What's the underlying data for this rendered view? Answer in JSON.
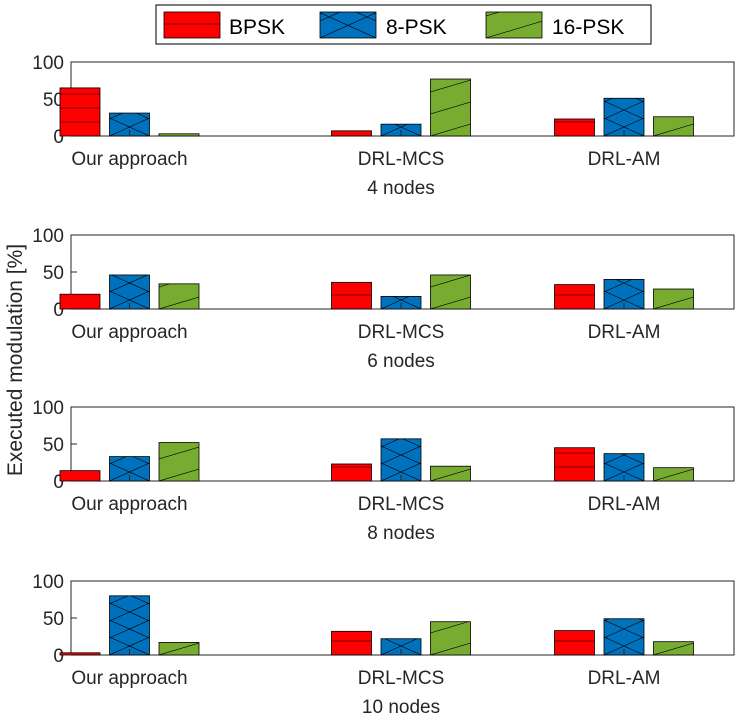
{
  "ylabel": "Executed modulation [%]",
  "legend": [
    {
      "name": "BPSK",
      "color": "#ff0000"
    },
    {
      "name": "8-PSK",
      "color": "#0072bd"
    },
    {
      "name": "16-PSK",
      "color": "#77ac30"
    }
  ],
  "chart_data": [
    {
      "type": "bar",
      "title": "4 nodes",
      "categories": [
        "Our approach",
        "DRL-MCS",
        "DRL-AM"
      ],
      "ylim": [
        0,
        100
      ],
      "yticks": [
        0,
        50,
        100
      ],
      "series": [
        {
          "name": "BPSK",
          "values": [
            65,
            7,
            23
          ]
        },
        {
          "name": "8-PSK",
          "values": [
            31,
            16,
            51
          ]
        },
        {
          "name": "16-PSK",
          "values": [
            3,
            77,
            26
          ]
        }
      ]
    },
    {
      "type": "bar",
      "title": "6 nodes",
      "categories": [
        "Our approach",
        "DRL-MCS",
        "DRL-AM"
      ],
      "ylim": [
        0,
        100
      ],
      "yticks": [
        0,
        50,
        100
      ],
      "series": [
        {
          "name": "BPSK",
          "values": [
            20,
            36,
            33
          ]
        },
        {
          "name": "8-PSK",
          "values": [
            46,
            17,
            40
          ]
        },
        {
          "name": "16-PSK",
          "values": [
            34,
            46,
            27
          ]
        }
      ]
    },
    {
      "type": "bar",
      "title": "8 nodes",
      "categories": [
        "Our approach",
        "DRL-MCS",
        "DRL-AM"
      ],
      "ylim": [
        0,
        100
      ],
      "yticks": [
        0,
        50,
        100
      ],
      "series": [
        {
          "name": "BPSK",
          "values": [
            14,
            23,
            45
          ]
        },
        {
          "name": "8-PSK",
          "values": [
            33,
            57,
            37
          ]
        },
        {
          "name": "16-PSK",
          "values": [
            52,
            20,
            18
          ]
        }
      ]
    },
    {
      "type": "bar",
      "title": "10 nodes",
      "categories": [
        "Our approach",
        "DRL-MCS",
        "DRL-AM"
      ],
      "ylim": [
        0,
        100
      ],
      "yticks": [
        0,
        50,
        100
      ],
      "series": [
        {
          "name": "BPSK",
          "values": [
            3,
            32,
            33
          ]
        },
        {
          "name": "8-PSK",
          "values": [
            80,
            22,
            49
          ]
        },
        {
          "name": "16-PSK",
          "values": [
            17,
            45,
            18
          ]
        }
      ]
    }
  ]
}
